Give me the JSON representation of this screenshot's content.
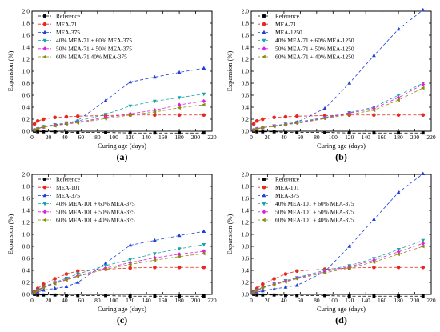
{
  "colors": {
    "Reference": "#000000",
    "MEA-71": "#e8281e",
    "MEA-101": "#e8281e",
    "MEA-375": "#1f3fd6",
    "MEA-1250": "#1f3fd6",
    "blend40": "#18a3a8",
    "blend50": "#e020e0",
    "blend60": "#8a8a10",
    "axis": "#000000"
  },
  "chart_data": [
    {
      "type": "scatter",
      "panel_label": "(a)",
      "xlabel": "Curing age (days)",
      "ylabel": "Expansion (%)",
      "xlim": [
        0,
        220
      ],
      "ylim": [
        0,
        2.0
      ],
      "xticks": [
        "0",
        "20",
        "40",
        "60",
        "80",
        "100",
        "120",
        "140",
        "160",
        "180",
        "200",
        "220"
      ],
      "yticks": [
        "0.0",
        "0.2",
        "0.4",
        "0.6",
        "0.8",
        "1.0",
        "1.2",
        "1.4",
        "1.6",
        "1.8",
        "2.0"
      ],
      "legend_position": "top-left",
      "series": [
        {
          "name": "Reference",
          "marker": "square",
          "color_key": "Reference",
          "x": [
            3,
            7,
            14,
            28,
            42,
            56,
            90,
            120,
            150,
            180,
            210
          ],
          "y": [
            0.0,
            -0.01,
            -0.01,
            -0.01,
            -0.02,
            -0.02,
            -0.02,
            -0.03,
            -0.03,
            -0.03,
            -0.03
          ]
        },
        {
          "name": "MEA-71",
          "marker": "circle",
          "color_key": "MEA-71",
          "x": [
            3,
            7,
            14,
            28,
            42,
            56,
            90,
            120,
            150,
            180,
            210
          ],
          "y": [
            0.12,
            0.17,
            0.2,
            0.23,
            0.24,
            0.25,
            0.26,
            0.27,
            0.27,
            0.27,
            0.27
          ]
        },
        {
          "name": "MEA-375",
          "marker": "triangle-up",
          "color_key": "MEA-375",
          "x": [
            3,
            7,
            14,
            28,
            42,
            56,
            90,
            120,
            150,
            180,
            210
          ],
          "y": [
            0.02,
            0.04,
            0.07,
            0.1,
            0.13,
            0.18,
            0.51,
            0.82,
            0.9,
            0.98,
            1.05
          ]
        },
        {
          "name": "40% MEA-71 + 60% MEA-375",
          "marker": "triangle-down",
          "color_key": "blend40",
          "x": [
            3,
            7,
            14,
            28,
            42,
            56,
            90,
            120,
            150,
            180,
            210
          ],
          "y": [
            0.02,
            0.04,
            0.08,
            0.11,
            0.14,
            0.17,
            0.28,
            0.42,
            0.5,
            0.56,
            0.62
          ]
        },
        {
          "name": "50% MEA-71 + 50% MEA-375",
          "marker": "diamond",
          "color_key": "blend50",
          "x": [
            3,
            7,
            14,
            28,
            42,
            56,
            90,
            120,
            150,
            180,
            210
          ],
          "y": [
            0.02,
            0.04,
            0.07,
            0.1,
            0.13,
            0.15,
            0.23,
            0.29,
            0.35,
            0.44,
            0.5
          ]
        },
        {
          "name": "60% MEA-71   40% MEA-375",
          "marker": "triangle-left",
          "color_key": "blend60",
          "x": [
            3,
            7,
            14,
            28,
            42,
            56,
            90,
            120,
            150,
            180,
            210
          ],
          "y": [
            0.02,
            0.04,
            0.07,
            0.09,
            0.12,
            0.14,
            0.21,
            0.27,
            0.32,
            0.39,
            0.44
          ]
        }
      ]
    },
    {
      "type": "scatter",
      "panel_label": "(b)",
      "xlabel": "Curing age (days)",
      "ylabel": "Expansion (%)",
      "xlim": [
        0,
        220
      ],
      "ylim": [
        0,
        2.0
      ],
      "xticks": [
        "0",
        "20",
        "40",
        "60",
        "80",
        "100",
        "120",
        "140",
        "160",
        "180",
        "200",
        "220"
      ],
      "yticks": [
        "0.0",
        "0.2",
        "0.4",
        "0.6",
        "0.8",
        "1.0",
        "1.2",
        "1.4",
        "1.6",
        "1.8",
        "2.0"
      ],
      "legend_position": "top-left",
      "series": [
        {
          "name": "Reference",
          "marker": "square",
          "color_key": "Reference",
          "x": [
            3,
            7,
            14,
            28,
            42,
            56,
            90,
            120,
            150,
            180,
            210
          ],
          "y": [
            0.0,
            -0.01,
            -0.01,
            -0.01,
            -0.02,
            -0.02,
            -0.02,
            -0.03,
            -0.03,
            -0.03,
            -0.03
          ]
        },
        {
          "name": "MEA-71",
          "marker": "circle",
          "color_key": "MEA-71",
          "x": [
            3,
            7,
            14,
            28,
            42,
            56,
            90,
            120,
            150,
            180,
            210
          ],
          "y": [
            0.12,
            0.17,
            0.2,
            0.23,
            0.24,
            0.25,
            0.26,
            0.27,
            0.27,
            0.27,
            0.27
          ]
        },
        {
          "name": "MEA-1250",
          "marker": "triangle-up",
          "color_key": "MEA-1250",
          "x": [
            3,
            7,
            14,
            28,
            42,
            56,
            90,
            120,
            150,
            180,
            210
          ],
          "y": [
            0.02,
            0.04,
            0.06,
            0.09,
            0.12,
            0.15,
            0.38,
            0.8,
            1.26,
            1.7,
            2.02
          ]
        },
        {
          "name": "40% MEA-71 + 60% MEA-1250",
          "marker": "triangle-down",
          "color_key": "blend40",
          "x": [
            3,
            7,
            14,
            28,
            42,
            56,
            90,
            120,
            150,
            180,
            210
          ],
          "y": [
            0.02,
            0.04,
            0.06,
            0.09,
            0.12,
            0.15,
            0.23,
            0.31,
            0.4,
            0.6,
            0.8
          ]
        },
        {
          "name": "50% MEA-71 + 50% MEA-1250",
          "marker": "diamond",
          "color_key": "blend50",
          "x": [
            3,
            7,
            14,
            28,
            42,
            56,
            90,
            120,
            150,
            180,
            210
          ],
          "y": [
            0.02,
            0.04,
            0.06,
            0.09,
            0.11,
            0.14,
            0.22,
            0.3,
            0.38,
            0.56,
            0.78
          ]
        },
        {
          "name": "60% MEA-71 + 40% MEA-1250",
          "marker": "triangle-left",
          "color_key": "blend60",
          "x": [
            3,
            7,
            14,
            28,
            42,
            56,
            90,
            120,
            150,
            180,
            210
          ],
          "y": [
            0.02,
            0.04,
            0.06,
            0.08,
            0.11,
            0.13,
            0.21,
            0.28,
            0.35,
            0.52,
            0.72
          ]
        }
      ]
    },
    {
      "type": "scatter",
      "panel_label": "(c)",
      "xlabel": "Curing age (days)",
      "ylabel": "Expansion (%)",
      "xlim": [
        0,
        220
      ],
      "ylim": [
        0,
        2.0
      ],
      "xticks": [
        "0",
        "20",
        "40",
        "60",
        "80",
        "100",
        "120",
        "140",
        "160",
        "180",
        "200",
        "220"
      ],
      "yticks": [
        "0.0",
        "0.2",
        "0.4",
        "0.6",
        "0.8",
        "1.0",
        "1.2",
        "1.4",
        "1.6",
        "1.8",
        "2.0"
      ],
      "legend_position": "top-left",
      "series": [
        {
          "name": "Reference",
          "marker": "square",
          "color_key": "Reference",
          "x": [
            3,
            7,
            14,
            28,
            42,
            56,
            90,
            120,
            150,
            180,
            210
          ],
          "y": [
            0.0,
            -0.01,
            -0.01,
            -0.01,
            -0.02,
            -0.02,
            -0.02,
            -0.03,
            -0.03,
            -0.03,
            -0.03
          ]
        },
        {
          "name": "MEA-101",
          "marker": "circle",
          "color_key": "MEA-101",
          "x": [
            3,
            7,
            14,
            28,
            42,
            56,
            90,
            120,
            150,
            180,
            210
          ],
          "y": [
            0.05,
            0.1,
            0.17,
            0.26,
            0.34,
            0.39,
            0.42,
            0.44,
            0.45,
            0.45,
            0.45
          ]
        },
        {
          "name": "MEA-375",
          "marker": "triangle-up",
          "color_key": "MEA-375",
          "x": [
            3,
            7,
            14,
            28,
            42,
            56,
            90,
            120,
            150,
            180,
            210
          ],
          "y": [
            0.02,
            0.04,
            0.07,
            0.1,
            0.13,
            0.2,
            0.52,
            0.82,
            0.9,
            0.98,
            1.05
          ]
        },
        {
          "name": "40% MEA-101 + 60% MEA-375",
          "marker": "triangle-down",
          "color_key": "blend40",
          "x": [
            3,
            7,
            14,
            28,
            42,
            56,
            90,
            120,
            150,
            180,
            210
          ],
          "y": [
            0.03,
            0.07,
            0.13,
            0.2,
            0.27,
            0.34,
            0.48,
            0.58,
            0.68,
            0.76,
            0.83
          ]
        },
        {
          "name": "50% MEA-101 + 50% MEA-375",
          "marker": "diamond",
          "color_key": "blend50",
          "x": [
            3,
            7,
            14,
            28,
            42,
            56,
            90,
            120,
            150,
            180,
            210
          ],
          "y": [
            0.03,
            0.06,
            0.12,
            0.19,
            0.25,
            0.31,
            0.44,
            0.53,
            0.61,
            0.67,
            0.72
          ]
        },
        {
          "name": "60% MEA-101 + 40% MEA-375",
          "marker": "triangle-left",
          "color_key": "blend60",
          "x": [
            3,
            7,
            14,
            28,
            42,
            56,
            90,
            120,
            150,
            180,
            210
          ],
          "y": [
            0.03,
            0.06,
            0.11,
            0.18,
            0.24,
            0.3,
            0.42,
            0.5,
            0.57,
            0.63,
            0.68
          ]
        }
      ]
    },
    {
      "type": "scatter",
      "panel_label": "(d)",
      "xlabel": "Curing age (days)",
      "ylabel": "Expansion (%)",
      "xlim": [
        0,
        220
      ],
      "ylim": [
        0,
        2.0
      ],
      "xticks": [
        "0",
        "20",
        "40",
        "60",
        "80",
        "100",
        "120",
        "140",
        "160",
        "180",
        "200",
        "220"
      ],
      "yticks": [
        "0.0",
        "0.2",
        "0.4",
        "0.6",
        "0.8",
        "1.0",
        "1.2",
        "1.4",
        "1.6",
        "1.8",
        "2.0"
      ],
      "legend_position": "top-left",
      "series": [
        {
          "name": "Reference",
          "marker": "square",
          "color_key": "Reference",
          "x": [
            3,
            7,
            14,
            28,
            42,
            56,
            90,
            120,
            150,
            180,
            210
          ],
          "y": [
            0.0,
            -0.01,
            -0.01,
            -0.01,
            -0.02,
            -0.02,
            -0.02,
            -0.03,
            -0.03,
            -0.03,
            -0.03
          ]
        },
        {
          "name": "MEA-101",
          "marker": "circle",
          "color_key": "MEA-101",
          "x": [
            3,
            7,
            14,
            28,
            42,
            56,
            90,
            120,
            150,
            180,
            210
          ],
          "y": [
            0.05,
            0.1,
            0.17,
            0.26,
            0.34,
            0.39,
            0.42,
            0.44,
            0.45,
            0.45,
            0.45
          ]
        },
        {
          "name": "MEA-375",
          "marker": "triangle-up",
          "color_key": "MEA-375",
          "x": [
            3,
            7,
            14,
            28,
            42,
            56,
            90,
            120,
            150,
            180,
            210
          ],
          "y": [
            0.02,
            0.04,
            0.06,
            0.09,
            0.12,
            0.15,
            0.38,
            0.8,
            1.25,
            1.7,
            2.01
          ]
        },
        {
          "name": "40% MEA-101 + 60% MEA-375",
          "marker": "triangle-down",
          "color_key": "blend40",
          "x": [
            3,
            7,
            14,
            28,
            42,
            56,
            90,
            120,
            150,
            180,
            210
          ],
          "y": [
            0.03,
            0.07,
            0.12,
            0.18,
            0.23,
            0.28,
            0.4,
            0.48,
            0.6,
            0.75,
            0.9
          ]
        },
        {
          "name": "50% MEA-101 + 50% MEA-375",
          "marker": "diamond",
          "color_key": "blend50",
          "x": [
            3,
            7,
            14,
            28,
            42,
            56,
            90,
            120,
            150,
            180,
            210
          ],
          "y": [
            0.03,
            0.06,
            0.11,
            0.17,
            0.22,
            0.27,
            0.38,
            0.46,
            0.57,
            0.71,
            0.85
          ]
        },
        {
          "name": "60% MEA-101 + 40% MEA-375",
          "marker": "triangle-left",
          "color_key": "blend60",
          "x": [
            3,
            7,
            14,
            28,
            42,
            56,
            90,
            120,
            150,
            180,
            210
          ],
          "y": [
            0.03,
            0.06,
            0.11,
            0.16,
            0.21,
            0.26,
            0.36,
            0.44,
            0.54,
            0.67,
            0.8
          ]
        }
      ]
    }
  ]
}
